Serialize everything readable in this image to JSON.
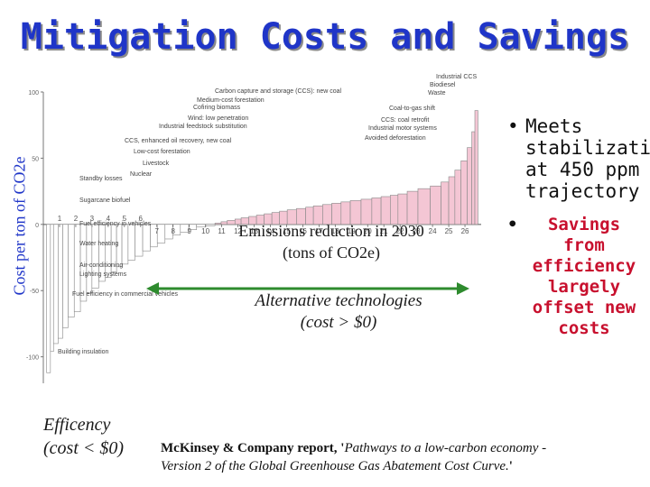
{
  "slide": {
    "title": "Mitigation Costs and Savings",
    "ylabel": "Cost per ton of CO2e",
    "xlabel_line1": "Emissions reduction in 2030",
    "xlabel_line2": "(tons of CO2e)",
    "alt_line1": "Alternative technologies",
    "alt_line2": "(cost > $0)",
    "eff_line1": "Efficency",
    "eff_line2": "(cost < $0)",
    "bullet1_line1": "Meets",
    "bullet1_line2": "stabilization",
    "bullet1_line3": "at 450 ppm",
    "bullet1_line4": "trajectory",
    "bullet2_line1": "Savings",
    "bullet2_line2": "from",
    "bullet2_line3": "efficiency",
    "bullet2_line4": "largely",
    "bullet2_line5": "offset new",
    "bullet2_line6": "costs",
    "bullet_glyph": "•",
    "note_line1_a": "McKinsey & Company report, '",
    "note_line1_b": "Pathways to a low-carbon economy -",
    "note_line2_b": "Version 2 of the Global Greenhouse Gas Abatement Cost Curve.",
    "note_line2_c": "'",
    "colors": {
      "title": "#1f35c8",
      "arrow": "#2e8b2e",
      "bars": "#f4c6d4",
      "bullet2": "#c8102e"
    }
  },
  "chart_data": {
    "type": "bar",
    "ylim": [
      -120,
      100
    ],
    "yticks": [
      "100",
      "50",
      "0",
      "-50",
      "-100"
    ],
    "xlim": [
      0,
      27
    ],
    "xticks": [
      "1",
      "2",
      "3",
      "4",
      "5",
      "6",
      "7",
      "8",
      "9",
      "10",
      "11",
      "12",
      "13",
      "14",
      "15",
      "16",
      "17",
      "18",
      "19",
      "20",
      "21",
      "22",
      "23",
      "24",
      "25",
      "26"
    ],
    "negative_labels": [
      "Building insulation",
      "Fuel efficiency in commercial vehicles",
      "Lighting systems",
      "Air-conditioning",
      "Water heating",
      "Fuel efficiency in vehicles",
      "Sugarcane biofuel",
      "Standby losses"
    ],
    "positive_labels": [
      "Carbon capture and storage (CCS): new coal",
      "Medium-cost forestation",
      "Cofiring biomass",
      "Wind: low penetration",
      "Industrial feedstock substitution",
      "CCS, enhanced oil recovery, new coal",
      "Low-cost forestation",
      "Livestock",
      "Nuclear"
    ],
    "right_labels": [
      "Industrial CCS",
      "Biodiesel",
      "Waste",
      "Coal-to-gas shift",
      "CCS: coal retrofit",
      "Industrial motor systems",
      "Avoided deforestation"
    ],
    "bars": [
      {
        "w": 0.25,
        "v": -112
      },
      {
        "w": 0.2,
        "v": -96
      },
      {
        "w": 0.3,
        "v": -90
      },
      {
        "w": 0.3,
        "v": -86
      },
      {
        "w": 0.35,
        "v": -78
      },
      {
        "w": 0.4,
        "v": -70
      },
      {
        "w": 0.4,
        "v": -66
      },
      {
        "w": 0.4,
        "v": -58
      },
      {
        "w": 0.35,
        "v": -52
      },
      {
        "w": 0.45,
        "v": -48
      },
      {
        "w": 0.4,
        "v": -43
      },
      {
        "w": 0.4,
        "v": -40
      },
      {
        "w": 0.35,
        "v": -36
      },
      {
        "w": 0.35,
        "v": -32
      },
      {
        "w": 0.4,
        "v": -30
      },
      {
        "w": 0.45,
        "v": -27
      },
      {
        "w": 0.5,
        "v": -24
      },
      {
        "w": 0.5,
        "v": -20
      },
      {
        "w": 0.45,
        "v": -17
      },
      {
        "w": 0.5,
        "v": -14
      },
      {
        "w": 0.5,
        "v": -11
      },
      {
        "w": 0.5,
        "v": -8
      },
      {
        "w": 0.55,
        "v": -6
      },
      {
        "w": 0.5,
        "v": -4
      },
      {
        "w": 0.6,
        "v": -2
      },
      {
        "w": 0.6,
        "v": -1
      },
      {
        "w": 0.4,
        "v": 1
      },
      {
        "w": 0.4,
        "v": 2
      },
      {
        "w": 0.5,
        "v": 3
      },
      {
        "w": 0.4,
        "v": 4
      },
      {
        "w": 0.5,
        "v": 5
      },
      {
        "w": 0.5,
        "v": 6
      },
      {
        "w": 0.5,
        "v": 7
      },
      {
        "w": 0.5,
        "v": 8
      },
      {
        "w": 0.5,
        "v": 9
      },
      {
        "w": 0.5,
        "v": 10
      },
      {
        "w": 0.6,
        "v": 11
      },
      {
        "w": 0.6,
        "v": 12
      },
      {
        "w": 0.5,
        "v": 13
      },
      {
        "w": 0.6,
        "v": 14
      },
      {
        "w": 0.6,
        "v": 15
      },
      {
        "w": 0.6,
        "v": 16
      },
      {
        "w": 0.6,
        "v": 17
      },
      {
        "w": 0.7,
        "v": 18
      },
      {
        "w": 0.7,
        "v": 19
      },
      {
        "w": 0.6,
        "v": 20
      },
      {
        "w": 0.6,
        "v": 21
      },
      {
        "w": 0.5,
        "v": 22
      },
      {
        "w": 0.6,
        "v": 23
      },
      {
        "w": 0.7,
        "v": 25
      },
      {
        "w": 0.8,
        "v": 27
      },
      {
        "w": 0.7,
        "v": 29
      },
      {
        "w": 0.5,
        "v": 32
      },
      {
        "w": 0.4,
        "v": 36
      },
      {
        "w": 0.4,
        "v": 41
      },
      {
        "w": 0.4,
        "v": 48
      },
      {
        "w": 0.3,
        "v": 58
      },
      {
        "w": 0.2,
        "v": 70
      },
      {
        "w": 0.2,
        "v": 86
      }
    ]
  }
}
